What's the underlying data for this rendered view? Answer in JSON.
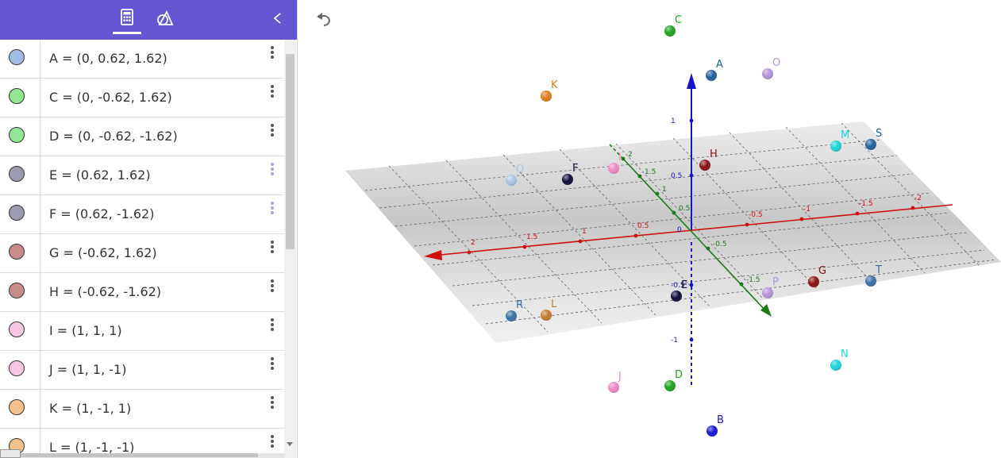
{
  "algebra": {
    "items": [
      {
        "name": "A",
        "text": "A = (0, 0.62, 1.62)",
        "color": "#9fbde6",
        "menu_dim": false
      },
      {
        "name": "C",
        "text": "C = (0, -0.62, 1.62)",
        "color": "#92e592",
        "menu_dim": false
      },
      {
        "name": "D",
        "text": "D = (0, -0.62, -1.62)",
        "color": "#92e592",
        "menu_dim": false
      },
      {
        "name": "E",
        "text": "E = (0.62, 1.62)",
        "color": "#9c9cb0",
        "menu_dim": true
      },
      {
        "name": "F",
        "text": "F = (0.62, -1.62)",
        "color": "#9c9cb0",
        "menu_dim": true
      },
      {
        "name": "G",
        "text": "G = (-0.62, 1.62)",
        "color": "#c88b8b",
        "menu_dim": false
      },
      {
        "name": "H",
        "text": "H = (-0.62, -1.62)",
        "color": "#c88b8b",
        "menu_dim": false
      },
      {
        "name": "I",
        "text": "I = (1, 1, 1)",
        "color": "#f6c6e2",
        "menu_dim": false
      },
      {
        "name": "J",
        "text": "J = (1, 1, -1)",
        "color": "#f6c6e2",
        "menu_dim": false
      },
      {
        "name": "K",
        "text": "K = (1, -1, 1)",
        "color": "#f6c08c",
        "menu_dim": false
      },
      {
        "name": "L",
        "text": "L = (1, -1, -1)",
        "color": "#f6c08c",
        "menu_dim": false
      }
    ]
  },
  "graphics": {
    "axis_x_ticks": [
      "2",
      "1.5",
      "1",
      "0.5",
      "-0.5",
      "-1",
      "-1.5",
      "-2"
    ],
    "axis_y_ticks": [
      "2",
      "1.5",
      "1",
      "0.5",
      "-0.5",
      "-1.5"
    ],
    "axis_z_ticks": [
      "1",
      "0.5",
      "-0.5",
      "-1"
    ],
    "origin_label": "0",
    "points": [
      {
        "label": "C",
        "color": "#1ea31e"
      },
      {
        "label": "A",
        "color": "#1f5fa0"
      },
      {
        "label": "O",
        "color": "#b392d8"
      },
      {
        "label": "K",
        "color": "#e07a18"
      },
      {
        "label": "M",
        "color": "#19d3d9"
      },
      {
        "label": "S",
        "color": "#1f5fa0"
      },
      {
        "label": "H",
        "color": "#8a1010"
      },
      {
        "label": "F",
        "color": "#0d0d3a"
      },
      {
        "label": "Q",
        "color": "#a9c5e0"
      },
      {
        "label": "I",
        "color": "#ee88c4"
      },
      {
        "label": "G",
        "color": "#8a1010"
      },
      {
        "label": "T",
        "color": "#3a6ea5"
      },
      {
        "label": "P",
        "color": "#b392d8"
      },
      {
        "label": "E",
        "color": "#0d0d3a"
      },
      {
        "label": "R",
        "color": "#3a6ea5"
      },
      {
        "label": "L",
        "color": "#c07a30"
      },
      {
        "label": "N",
        "color": "#19d3d9"
      },
      {
        "label": "J",
        "color": "#ee88c4"
      },
      {
        "label": "D",
        "color": "#1ea31e"
      },
      {
        "label": "B",
        "color": "#1717d0"
      }
    ],
    "colors": {
      "x_axis": "#d01010",
      "y_axis": "#1a7a1a",
      "z_axis": "#1515c8",
      "toolbar": "#6557d2"
    }
  },
  "icons": {
    "algebra_tab": "calculator-icon",
    "tools_tab": "shapes-icon",
    "collapse": "chevron-left-icon",
    "undo": "undo-icon",
    "keyboard": "keyboard-icon"
  }
}
